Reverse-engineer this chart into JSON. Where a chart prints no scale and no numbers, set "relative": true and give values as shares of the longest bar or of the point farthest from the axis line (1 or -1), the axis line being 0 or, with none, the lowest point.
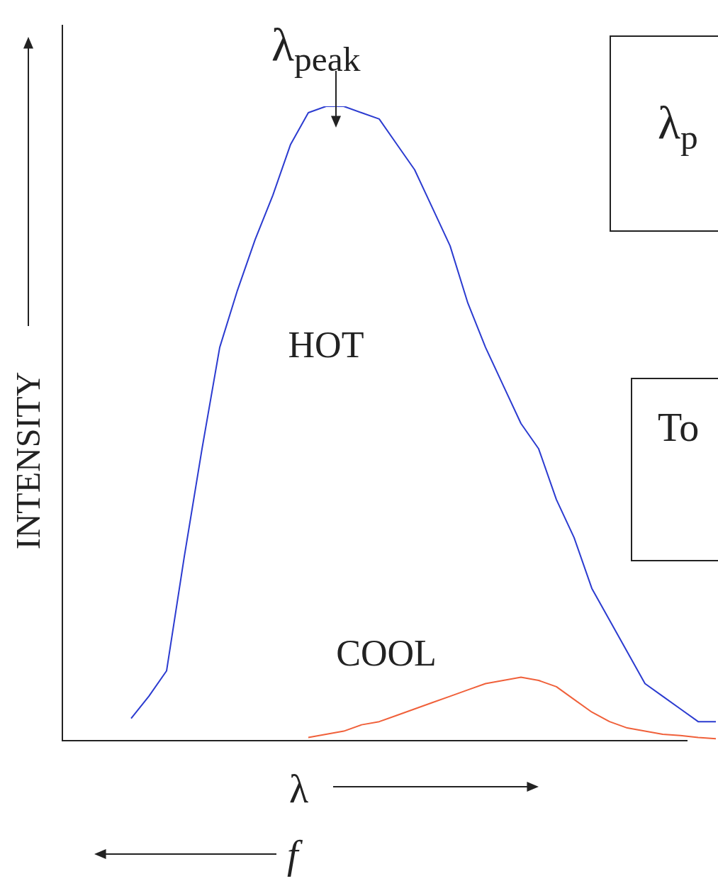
{
  "chart_data": {
    "type": "line",
    "relative": true,
    "title": "λ$_{peak}$",
    "xlabel": "λ",
    "ylabel": "INTENSITY",
    "annotations": [
      "f",
      "λ$_{p}$",
      "To"
    ],
    "categories": [
      null,
      null,
      null,
      null,
      null,
      null,
      null,
      null,
      null,
      null,
      null,
      null,
      null,
      null,
      null,
      null,
      null,
      null,
      null,
      null,
      null,
      null,
      null,
      null,
      null,
      null,
      null,
      null,
      null,
      null,
      null,
      null,
      null,
      null,
      null,
      null,
      null,
      null
    ],
    "series": [
      {
        "name": "HOT",
        "color": "#2b3bd0",
        "values": [
          null,
          null,
          null,
          null,
          0.035,
          0.07,
          0.11,
          0.29,
          0.46,
          0.62,
          0.71,
          0.79,
          0.86,
          0.94,
          0.99,
          1.0,
          1.0,
          0.99,
          0.98,
          0.94,
          0.9,
          0.84,
          0.78,
          0.69,
          0.62,
          0.56,
          0.5,
          0.46,
          0.38,
          0.32,
          0.24,
          0.19,
          0.14,
          0.09,
          0.07,
          0.05,
          0.03,
          0.03
        ]
      },
      {
        "name": "COOL",
        "color": "#f0603a",
        "values": [
          null,
          null,
          null,
          null,
          null,
          null,
          null,
          null,
          null,
          null,
          null,
          null,
          null,
          null,
          0.005,
          0.01,
          0.015,
          0.025,
          0.03,
          0.04,
          0.05,
          0.06,
          0.07,
          0.08,
          0.09,
          0.095,
          0.1,
          0.095,
          0.085,
          0.065,
          0.045,
          0.03,
          0.02,
          0.015,
          0.01,
          0.008,
          0.005,
          0.003
        ]
      }
    ],
    "legend": false
  }
}
